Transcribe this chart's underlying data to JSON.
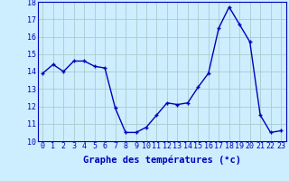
{
  "x": [
    0,
    1,
    2,
    3,
    4,
    5,
    6,
    7,
    8,
    9,
    10,
    11,
    12,
    13,
    14,
    15,
    16,
    17,
    18,
    19,
    20,
    21,
    22,
    23
  ],
  "y": [
    13.9,
    14.4,
    14.0,
    14.6,
    14.6,
    14.3,
    14.2,
    11.9,
    10.5,
    10.5,
    10.8,
    11.5,
    12.2,
    12.1,
    12.2,
    13.1,
    13.9,
    16.5,
    17.7,
    16.7,
    15.7,
    11.5,
    10.5,
    10.6
  ],
  "line_color": "#0000bb",
  "marker": "+",
  "marker_size": 3.5,
  "marker_lw": 1.0,
  "bg_color": "#cceeff",
  "grid_color": "#aacccc",
  "xlabel": "Graphe des températures (°c)",
  "xlabel_fontsize": 7.5,
  "tick_fontsize": 6.0,
  "ylim": [
    10,
    18
  ],
  "yticks": [
    10,
    11,
    12,
    13,
    14,
    15,
    16,
    17,
    18
  ],
  "xticks": [
    0,
    1,
    2,
    3,
    4,
    5,
    6,
    7,
    8,
    9,
    10,
    11,
    12,
    13,
    14,
    15,
    16,
    17,
    18,
    19,
    20,
    21,
    22,
    23
  ],
  "tick_color": "#0000bb",
  "label_color": "#0000bb",
  "line_width": 1.0
}
